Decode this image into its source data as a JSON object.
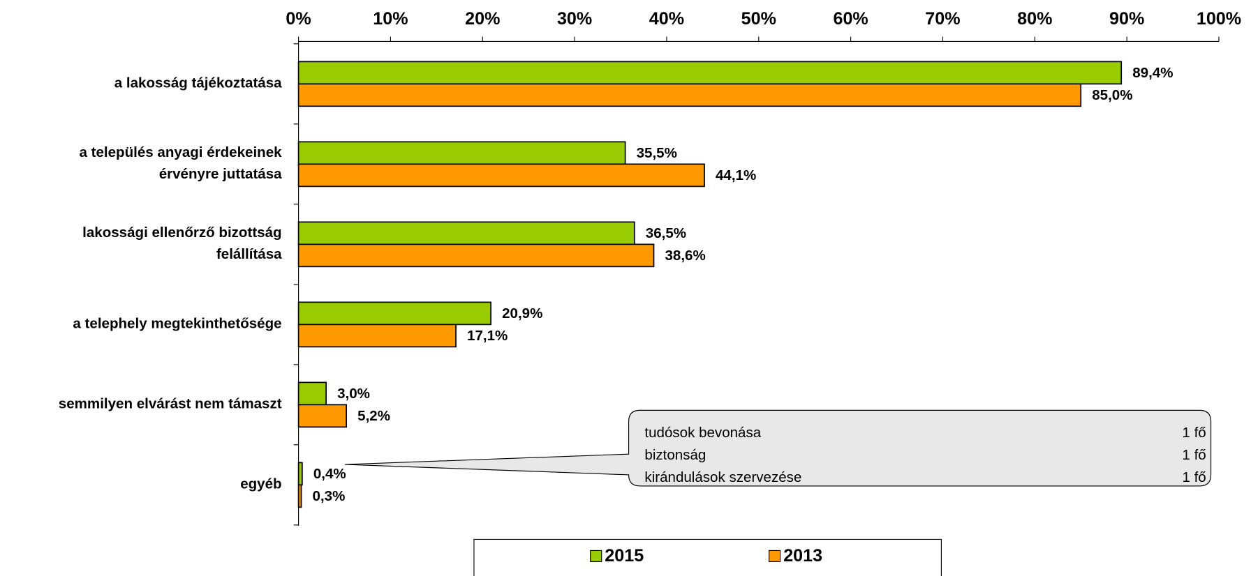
{
  "chart_data": {
    "type": "bar",
    "orientation": "horizontal",
    "categories": [
      [
        "a lakosság tájékoztatása"
      ],
      [
        "a település anyagi érdekeinek",
        "érvényre juttatása"
      ],
      [
        "lakossági ellenőrző bizottság",
        "felállítása"
      ],
      [
        "a telephely megtekinthetősége"
      ],
      [
        "semmilyen elvárást nem támaszt"
      ],
      [
        "egyéb"
      ]
    ],
    "series": [
      {
        "name": "2015",
        "color": "#99cc00",
        "values": [
          89.4,
          35.5,
          36.5,
          20.9,
          3.0,
          0.4
        ],
        "value_labels": [
          "89,4%",
          "35,5%",
          "36,5%",
          "20,9%",
          "3,0%",
          "0,4%"
        ]
      },
      {
        "name": "2013",
        "color": "#ff9900",
        "values": [
          85.0,
          44.1,
          38.6,
          17.1,
          5.2,
          0.3
        ],
        "value_labels": [
          "85,0%",
          "44,1%",
          "38,6%",
          "17,1%",
          "5,2%",
          "0,3%"
        ]
      }
    ],
    "xlim": [
      0,
      100
    ],
    "xticks": [
      {
        "value": 0,
        "label": "0%"
      },
      {
        "value": 10,
        "label": "10%"
      },
      {
        "value": 20,
        "label": "20%"
      },
      {
        "value": 30,
        "label": "30%"
      },
      {
        "value": 40,
        "label": "40%"
      },
      {
        "value": 50,
        "label": "50%"
      },
      {
        "value": 60,
        "label": "60%"
      },
      {
        "value": 70,
        "label": "70%"
      },
      {
        "value": 80,
        "label": "80%"
      },
      {
        "value": 90,
        "label": "90%"
      },
      {
        "value": 100,
        "label": "100%"
      }
    ],
    "legend": "bottom",
    "annotation": {
      "rows": [
        [
          "tudósok bevonása",
          "1 fő"
        ],
        [
          "biztonság",
          "1 fő"
        ],
        [
          "kirándulások szervezése",
          "1 fő"
        ]
      ]
    }
  }
}
